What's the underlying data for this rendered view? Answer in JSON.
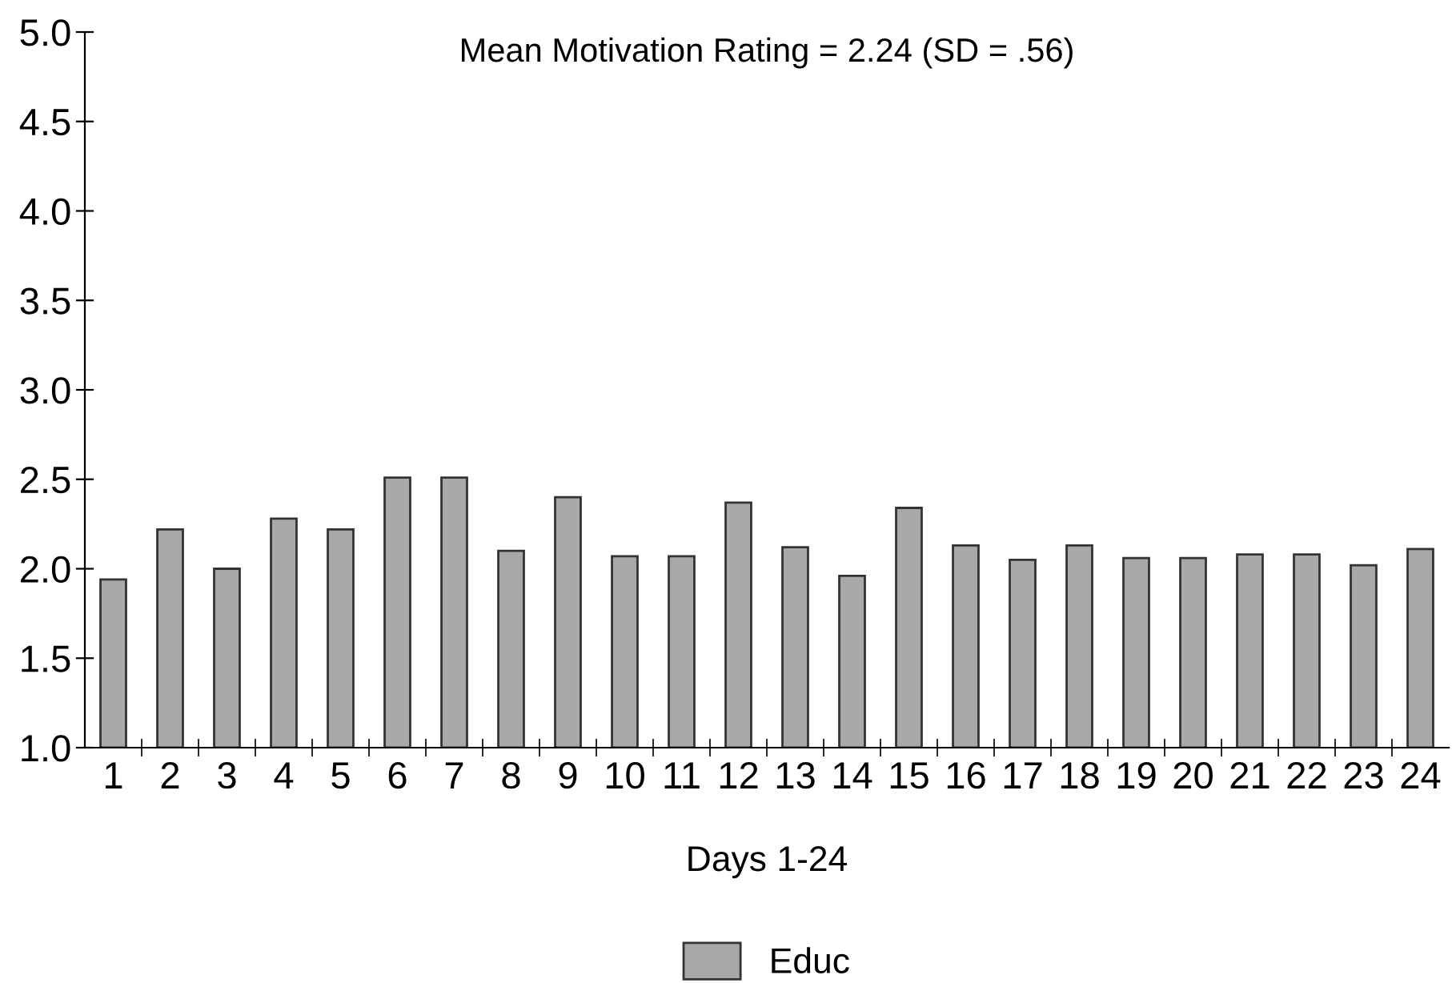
{
  "chart_data": {
    "type": "bar",
    "title": "Mean Motivation Rating = 2.24 (SD = .56)",
    "xlabel": "Days 1-24",
    "categories": [
      "1",
      "2",
      "3",
      "4",
      "5",
      "6",
      "7",
      "8",
      "9",
      "10",
      "11",
      "12",
      "13",
      "14",
      "15",
      "16",
      "17",
      "18",
      "19",
      "20",
      "21",
      "22",
      "23",
      "24"
    ],
    "series": [
      {
        "name": "Educ",
        "color": "#a8a8a8",
        "values": [
          1.94,
          2.22,
          2.0,
          2.28,
          2.22,
          2.51,
          2.51,
          2.1,
          2.4,
          2.07,
          2.07,
          2.37,
          2.12,
          1.96,
          2.34,
          2.13,
          2.05,
          2.13,
          2.06,
          2.06,
          2.08,
          2.08,
          2.02,
          2.11
        ]
      }
    ],
    "ylim": [
      1.0,
      5.0
    ],
    "yticks": [
      {
        "value": 1.0,
        "label": "1.0"
      },
      {
        "value": 1.5,
        "label": "1.5"
      },
      {
        "value": 2.0,
        "label": "2.0"
      },
      {
        "value": 2.5,
        "label": "2.5"
      },
      {
        "value": 3.0,
        "label": "3.0"
      },
      {
        "value": 3.5,
        "label": "3.5"
      },
      {
        "value": 4.0,
        "label": "4.0"
      },
      {
        "value": 4.5,
        "label": "4.5"
      },
      {
        "value": 5.0,
        "label": "5.0"
      }
    ],
    "grid": false,
    "legend": "bottom"
  }
}
